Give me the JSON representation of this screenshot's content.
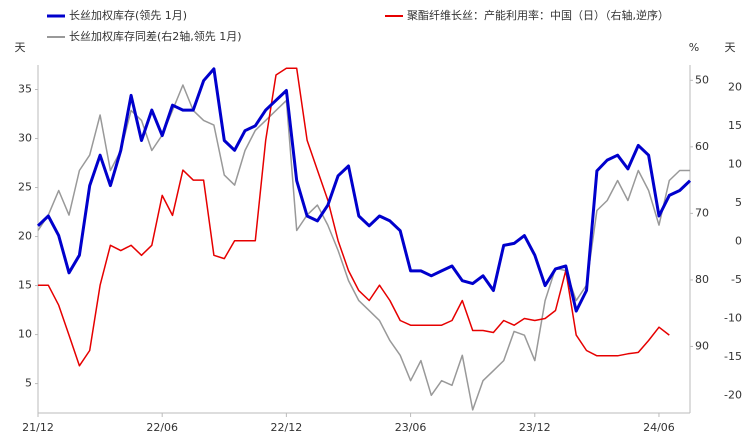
{
  "chart_data": {
    "type": "line",
    "y_unit": "天",
    "y2_unit": "%",
    "y3_unit": "天",
    "x": [
      0,
      0.5,
      1,
      1.5,
      2,
      2.5,
      3,
      3.5,
      4,
      4.5,
      5,
      5.5,
      6,
      6.5,
      7,
      7.5,
      8,
      8.5,
      9,
      9.5,
      10,
      10.5,
      11,
      11.5,
      12,
      12.5,
      13,
      13.5,
      14,
      14.5,
      15,
      15.5,
      16,
      16.5,
      17,
      17.5,
      18,
      18.5,
      19,
      19.5,
      20,
      20.5,
      21,
      21.5,
      22,
      22.5,
      23,
      23.5,
      24,
      24.5,
      25,
      25.5,
      26,
      26.5,
      27,
      27.5,
      28,
      28.5,
      29,
      29.5,
      30,
      30.5,
      31,
      31.5
    ],
    "xlim": [
      0,
      31.5
    ],
    "xticks": [
      {
        "value": 0,
        "label": "21/12"
      },
      {
        "value": 6,
        "label": "22/06"
      },
      {
        "value": 12,
        "label": "22/12"
      },
      {
        "value": 18,
        "label": "23/06"
      },
      {
        "value": 24,
        "label": "23/12"
      },
      {
        "value": 30,
        "label": "24/06"
      }
    ],
    "ylim": [
      2,
      37.5
    ],
    "yticks": [
      5,
      10,
      15,
      20,
      25,
      30,
      35
    ],
    "y2lim": [
      47.7,
      100
    ],
    "y2ticks": [
      50,
      60,
      70,
      80,
      90
    ],
    "y2_inverted": true,
    "y3lim": [
      -22.3,
      22.9
    ],
    "y3ticks": [
      -20,
      -15,
      -10,
      -5,
      0,
      5,
      10,
      15,
      20
    ],
    "series": [
      {
        "name": "长丝加权库存(领先 1月)",
        "color": "#0000cc",
        "axis": "y",
        "width": 3,
        "values": [
          21.1,
          22.1,
          20.1,
          16.3,
          18.1,
          25.2,
          28.3,
          25.2,
          28.8,
          34.4,
          29.8,
          32.9,
          30.3,
          33.4,
          32.9,
          32.9,
          35.9,
          37.1,
          29.8,
          28.8,
          30.8,
          31.3,
          32.9,
          33.9,
          34.9,
          25.7,
          22.1,
          21.6,
          23.2,
          26.2,
          27.2,
          22.1,
          21.1,
          22.1,
          21.6,
          20.6,
          16.5,
          16.5,
          16.0,
          16.5,
          17.0,
          15.5,
          15.2,
          16.0,
          14.5,
          19.1,
          19.3,
          20.1,
          18.1,
          15.0,
          16.7,
          17.0,
          12.4,
          14.5,
          26.7,
          27.8,
          28.3,
          26.9,
          29.3,
          28.3,
          22.1,
          24.2,
          24.7,
          25.7
        ]
      },
      {
        "name": "聚酯纤维长丝：产能利用率：中国（日）（右轴,逆序）",
        "color": "#e60000",
        "axis": "y2",
        "width": 1.5,
        "values": [
          80.8,
          80.8,
          83.8,
          88.3,
          92.9,
          90.6,
          80.8,
          74.8,
          75.6,
          74.8,
          76.3,
          74.8,
          67.3,
          70.3,
          63.5,
          65.0,
          65.0,
          76.3,
          76.8,
          74.1,
          74.1,
          74.1,
          59.0,
          49.2,
          48.2,
          48.2,
          59.0,
          63.5,
          68.0,
          74.1,
          78.6,
          81.6,
          83.1,
          80.8,
          83.1,
          86.1,
          86.8,
          86.8,
          86.8,
          86.8,
          86.1,
          83.1,
          87.6,
          87.6,
          87.9,
          86.1,
          86.8,
          85.8,
          86.1,
          85.8,
          84.6,
          78.6,
          88.3,
          90.6,
          91.4,
          91.4,
          91.4,
          91.1,
          90.9,
          89.1,
          87.1,
          88.3,
          null,
          null
        ]
      },
      {
        "name": "长丝加权库存同差(右2轴,领先 1月)",
        "color": "#999999",
        "axis": "y3",
        "width": 1.5,
        "values": [
          1.4,
          3.4,
          6.6,
          3.4,
          9.2,
          11.2,
          16.4,
          9.2,
          11.8,
          17.0,
          15.7,
          11.8,
          13.8,
          17.0,
          20.3,
          17.0,
          15.7,
          15.1,
          8.6,
          7.3,
          11.8,
          14.4,
          15.7,
          17.0,
          18.3,
          1.4,
          3.4,
          4.7,
          2.1,
          -1.2,
          -5.1,
          -7.7,
          -9.0,
          -10.3,
          -12.9,
          -14.8,
          -18.1,
          -15.5,
          -20.0,
          -18.1,
          -18.7,
          -14.8,
          -21.9,
          -18.1,
          -16.8,
          -15.5,
          -11.7,
          -12.2,
          -15.5,
          -7.7,
          -3.5,
          -3.8,
          -7.7,
          -5.7,
          4.0,
          5.3,
          7.9,
          5.3,
          9.2,
          6.6,
          2.1,
          7.9,
          9.2,
          9.2
        ]
      }
    ]
  }
}
